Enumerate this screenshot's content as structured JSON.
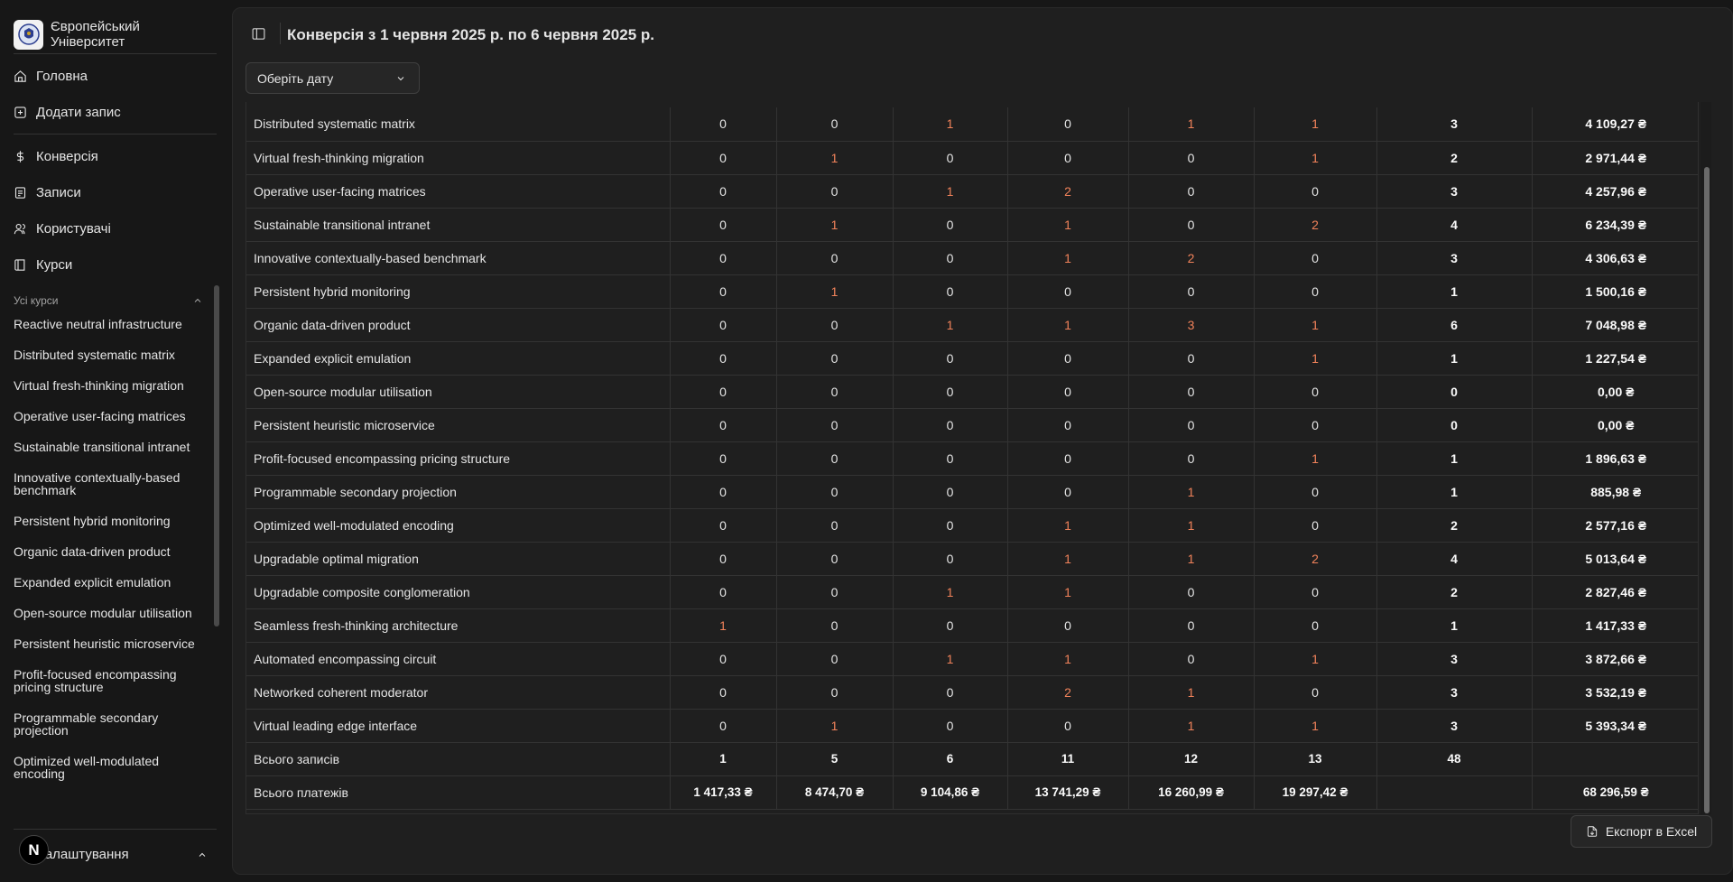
{
  "brand": {
    "name": "Європейський Університет"
  },
  "nav": [
    {
      "label": "Головна",
      "icon": "home-icon"
    },
    {
      "label": "Додати запис",
      "icon": "plus-square-icon"
    },
    {
      "label": "Конверсія",
      "icon": "dollar-icon"
    },
    {
      "label": "Записи",
      "icon": "clipboard-icon"
    },
    {
      "label": "Користувачі",
      "icon": "users-icon"
    },
    {
      "label": "Курси",
      "icon": "book-icon"
    }
  ],
  "courses_group": {
    "label": "Усі курси",
    "items": [
      "Reactive neutral infrastructure",
      "Distributed systematic matrix",
      "Virtual fresh-thinking migration",
      "Operative user-facing matrices",
      "Sustainable transitional intranet",
      "Innovative contextually-based benchmark",
      "Persistent hybrid monitoring",
      "Organic data-driven product",
      "Expanded explicit emulation",
      "Open-source modular utilisation",
      "Persistent heuristic microservice",
      "Profit-focused encompassing pricing structure",
      "Programmable secondary projection",
      "Optimized well-modulated encoding"
    ]
  },
  "settings": {
    "label": "Налаштування",
    "badge": "N"
  },
  "header": {
    "title": "Конверсія з 1 червня 2025 р. по 6 червня 2025 р."
  },
  "date_select": {
    "placeholder": "Оберіть дату"
  },
  "table": {
    "rows": [
      {
        "name": "Distributed systematic matrix",
        "cells": [
          "0",
          "0",
          "1",
          "0",
          "1",
          "1"
        ],
        "total": "3",
        "sum": "4 109,27 ₴"
      },
      {
        "name": "Virtual fresh-thinking migration",
        "cells": [
          "0",
          "1",
          "0",
          "0",
          "0",
          "1"
        ],
        "total": "2",
        "sum": "2 971,44 ₴"
      },
      {
        "name": "Operative user-facing matrices",
        "cells": [
          "0",
          "0",
          "1",
          "2",
          "0",
          "0"
        ],
        "total": "3",
        "sum": "4 257,96 ₴"
      },
      {
        "name": "Sustainable transitional intranet",
        "cells": [
          "0",
          "1",
          "0",
          "1",
          "0",
          "2"
        ],
        "total": "4",
        "sum": "6 234,39 ₴"
      },
      {
        "name": "Innovative contextually-based benchmark",
        "cells": [
          "0",
          "0",
          "0",
          "1",
          "2",
          "0"
        ],
        "total": "3",
        "sum": "4 306,63 ₴"
      },
      {
        "name": "Persistent hybrid monitoring",
        "cells": [
          "0",
          "1",
          "0",
          "0",
          "0",
          "0"
        ],
        "total": "1",
        "sum": "1 500,16 ₴"
      },
      {
        "name": "Organic data-driven product",
        "cells": [
          "0",
          "0",
          "1",
          "1",
          "3",
          "1"
        ],
        "total": "6",
        "sum": "7 048,98 ₴"
      },
      {
        "name": "Expanded explicit emulation",
        "cells": [
          "0",
          "0",
          "0",
          "0",
          "0",
          "1"
        ],
        "total": "1",
        "sum": "1 227,54 ₴"
      },
      {
        "name": "Open-source modular utilisation",
        "cells": [
          "0",
          "0",
          "0",
          "0",
          "0",
          "0"
        ],
        "total": "0",
        "sum": "0,00 ₴"
      },
      {
        "name": "Persistent heuristic microservice",
        "cells": [
          "0",
          "0",
          "0",
          "0",
          "0",
          "0"
        ],
        "total": "0",
        "sum": "0,00 ₴"
      },
      {
        "name": "Profit-focused encompassing pricing structure",
        "cells": [
          "0",
          "0",
          "0",
          "0",
          "0",
          "1"
        ],
        "total": "1",
        "sum": "1 896,63 ₴"
      },
      {
        "name": "Programmable secondary projection",
        "cells": [
          "0",
          "0",
          "0",
          "0",
          "1",
          "0"
        ],
        "total": "1",
        "sum": "885,98 ₴"
      },
      {
        "name": "Optimized well-modulated encoding",
        "cells": [
          "0",
          "0",
          "0",
          "1",
          "1",
          "0"
        ],
        "total": "2",
        "sum": "2 577,16 ₴"
      },
      {
        "name": "Upgradable optimal migration",
        "cells": [
          "0",
          "0",
          "0",
          "1",
          "1",
          "2"
        ],
        "total": "4",
        "sum": "5 013,64 ₴"
      },
      {
        "name": "Upgradable composite conglomeration",
        "cells": [
          "0",
          "0",
          "1",
          "1",
          "0",
          "0"
        ],
        "total": "2",
        "sum": "2 827,46 ₴"
      },
      {
        "name": "Seamless fresh-thinking architecture",
        "cells": [
          "1",
          "0",
          "0",
          "0",
          "0",
          "0"
        ],
        "total": "1",
        "sum": "1 417,33 ₴"
      },
      {
        "name": "Automated encompassing circuit",
        "cells": [
          "0",
          "0",
          "1",
          "1",
          "0",
          "1"
        ],
        "total": "3",
        "sum": "3 872,66 ₴"
      },
      {
        "name": "Networked coherent moderator",
        "cells": [
          "0",
          "0",
          "0",
          "2",
          "1",
          "0"
        ],
        "total": "3",
        "sum": "3 532,19 ₴"
      },
      {
        "name": "Virtual leading edge interface",
        "cells": [
          "0",
          "1",
          "0",
          "0",
          "1",
          "1"
        ],
        "total": "3",
        "sum": "5 393,34 ₴"
      }
    ],
    "totals_records": {
      "label": "Всього записів",
      "cells": [
        "1",
        "5",
        "6",
        "11",
        "12",
        "13"
      ],
      "total": "48",
      "sum": ""
    },
    "totals_payments": {
      "label": "Всього платежів",
      "cells": [
        "1 417,33 ₴",
        "8 474,70 ₴",
        "9 104,86 ₴",
        "13 741,29 ₴",
        "16 260,99 ₴",
        "19 297,42 ₴"
      ],
      "total": "",
      "sum": "68 296,59 ₴"
    }
  },
  "export_button": {
    "label": "Експорт в Excel"
  },
  "colors": {
    "highlight": "#f0825a",
    "background": "#171717",
    "panel": "#1f1f1f"
  }
}
